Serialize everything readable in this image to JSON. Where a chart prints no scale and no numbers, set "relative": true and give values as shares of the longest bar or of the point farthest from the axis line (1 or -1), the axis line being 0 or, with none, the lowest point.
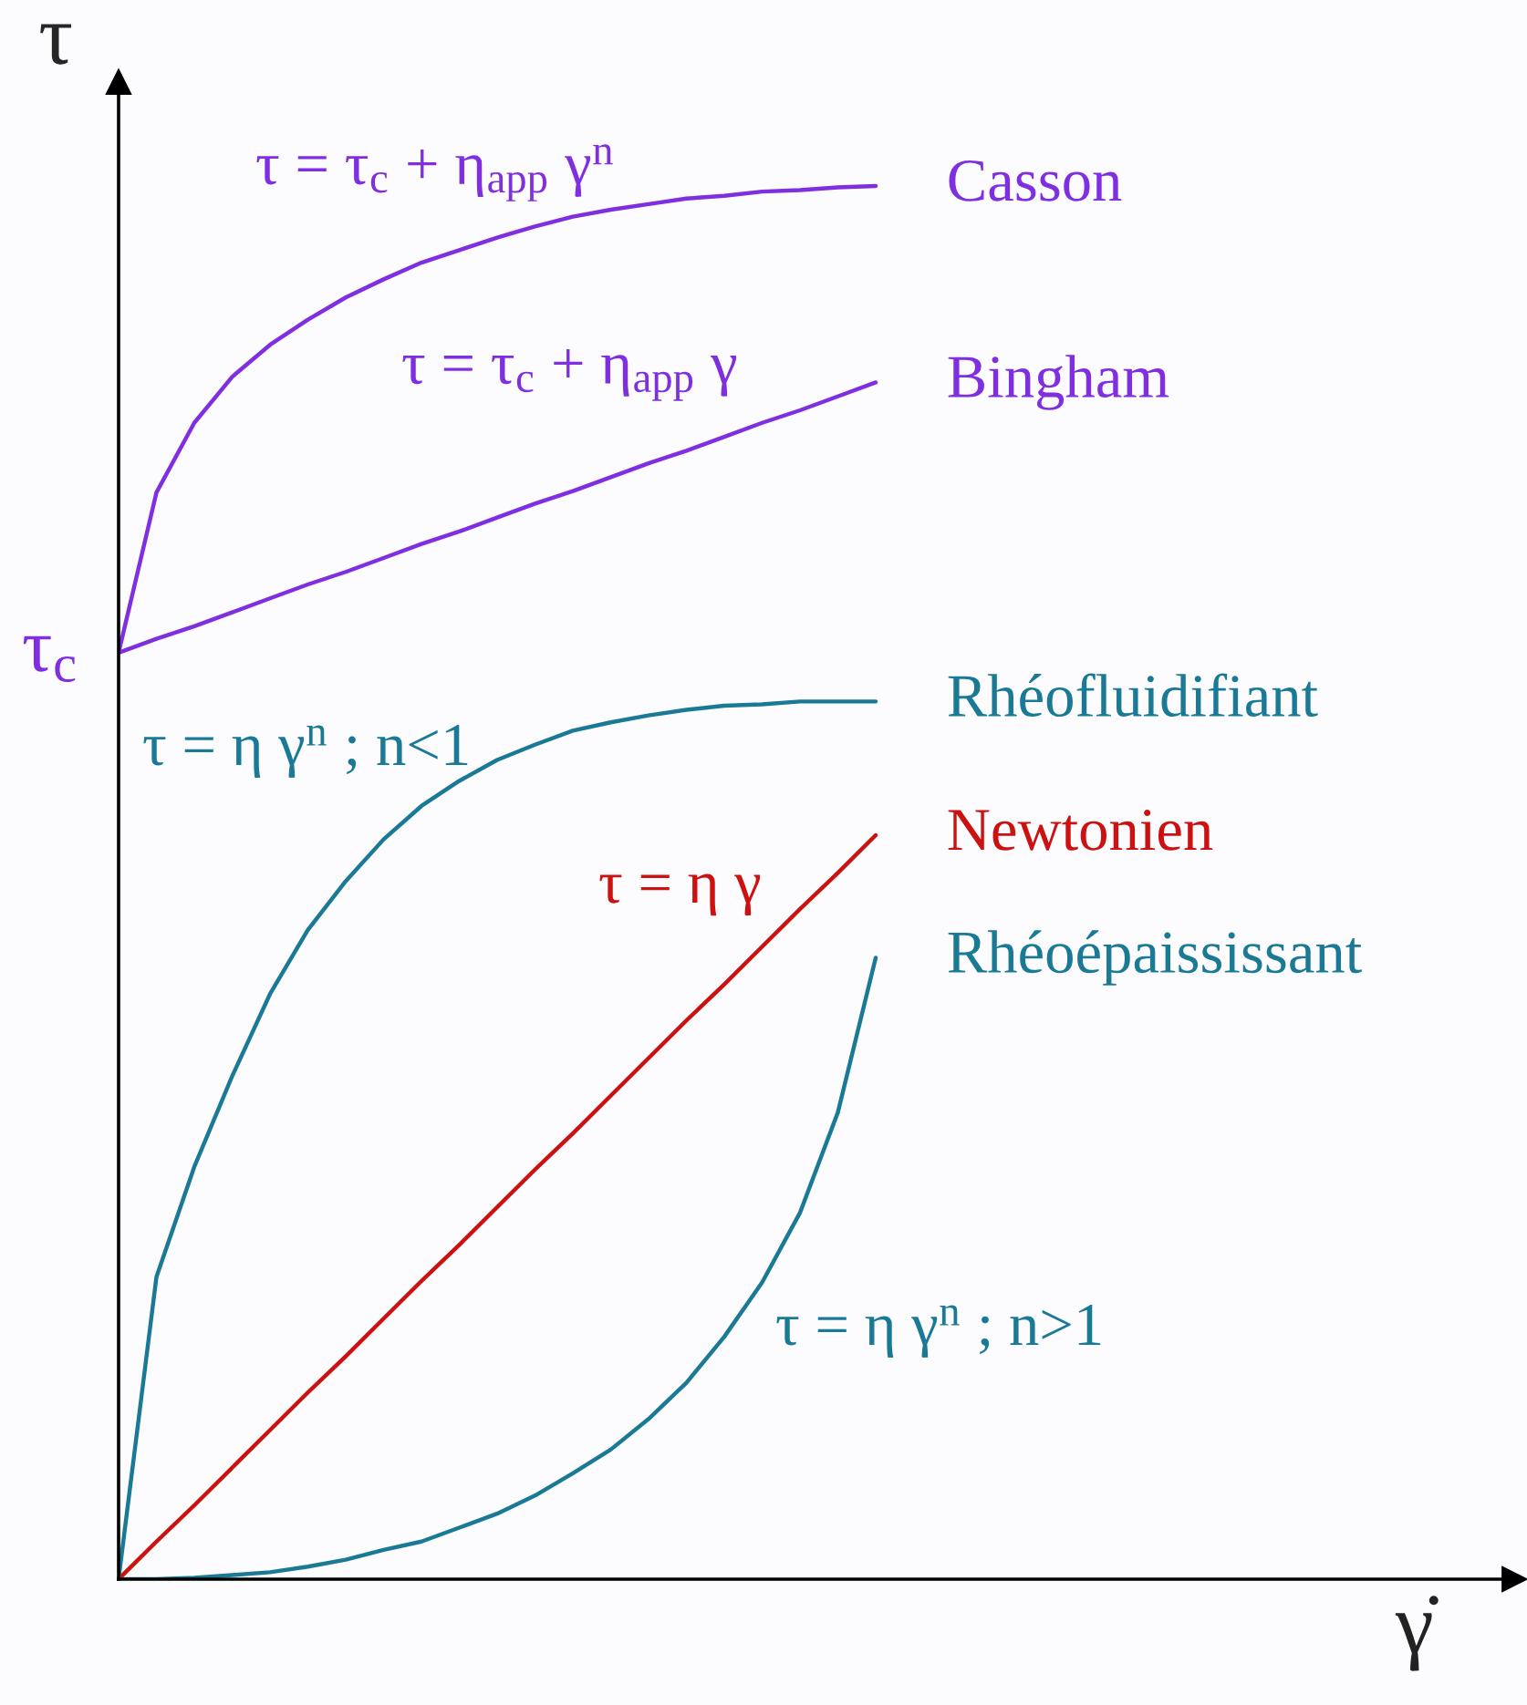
{
  "chart_data": {
    "type": "line",
    "relative": true,
    "ylabel": "τ",
    "marker": "none",
    "line_style": "solid",
    "categories": [
      null,
      null,
      null,
      null,
      null,
      null,
      null,
      null,
      null,
      null,
      null,
      null,
      null,
      null,
      null,
      null,
      null,
      null,
      null,
      null,
      null
    ],
    "series": [
      {
        "name": "Casson",
        "color": "#7f2fe0",
        "values": [
          0.665,
          0.78,
          0.83,
          0.863,
          0.886,
          0.904,
          0.92,
          0.933,
          0.945,
          0.954,
          0.963,
          0.971,
          0.978,
          0.983,
          0.987,
          0.991,
          0.993,
          0.996,
          0.997,
          0.999,
          1.0
        ]
      },
      {
        "name": "Bingham",
        "color": "#7f2fe0",
        "values": [
          0.665,
          0.675,
          0.684,
          0.694,
          0.704,
          0.714,
          0.723,
          0.733,
          0.743,
          0.752,
          0.762,
          0.772,
          0.781,
          0.791,
          0.801,
          0.81,
          0.82,
          0.83,
          0.839,
          0.849,
          0.859
        ]
      },
      {
        "name": "Rhéofluidifiant",
        "color": "#1a7a96",
        "values": [
          0,
          0.217,
          0.296,
          0.361,
          0.42,
          0.466,
          0.501,
          0.531,
          0.555,
          0.573,
          0.588,
          0.599,
          0.609,
          0.615,
          0.62,
          0.624,
          0.627,
          0.628,
          0.63,
          0.63,
          0.63
        ]
      },
      {
        "name": "Newtonien",
        "color": "#cc1111",
        "values": [
          0,
          0.027,
          0.053,
          0.08,
          0.107,
          0.134,
          0.16,
          0.187,
          0.214,
          0.24,
          0.267,
          0.294,
          0.32,
          0.347,
          0.374,
          0.401,
          0.427,
          0.454,
          0.481,
          0.507,
          0.534
        ]
      },
      {
        "name": "Rhéoépaississant",
        "color": "#1a7a96",
        "values": [
          0,
          0,
          0.001,
          0.003,
          0.005,
          0.009,
          0.014,
          0.021,
          0.027,
          0.037,
          0.047,
          0.06,
          0.076,
          0.093,
          0.115,
          0.141,
          0.174,
          0.213,
          0.263,
          0.335,
          0.446
        ]
      }
    ],
    "annotations": [
      "τ = τ$_{c}$ + η$_{app}$ γ$^{n}$",
      "τ = τ$_{c}$ + η$_{app}$ γ",
      "τ = η γ$^{n}$ ; n<1",
      "τ = η γ",
      "τ = η γ$^{n}$ ; n>1",
      "τ$_{c}$",
      "γ̇"
    ]
  }
}
